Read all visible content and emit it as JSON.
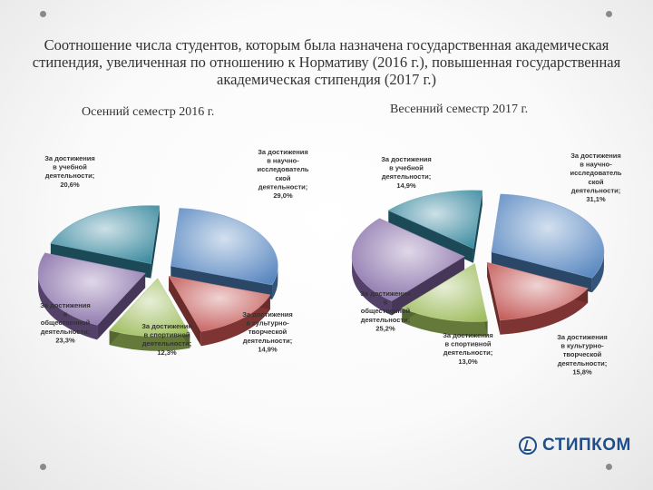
{
  "title": "Соотношение числа студентов, которым была назначена государственная академическая стипендия, увеличенная по отношению к Нормативу (2016 г.), повышенная государственная академическая стипендия (2017 г.)",
  "brand": {
    "name": "СТИПКОМ",
    "color": "#1f4f8a"
  },
  "chart_data": [
    {
      "type": "pie",
      "subtitle": "Осенний семестр 2016 г.",
      "slices": [
        {
          "label": "За достижения в научно-исследовательской деятельности",
          "value": 29.0,
          "value_label": "29,0%",
          "color": "#4f81bd"
        },
        {
          "label": "За достижения в культурно-творческой деятельности",
          "value": 14.9,
          "value_label": "14,9%",
          "color": "#c0504d"
        },
        {
          "label": "За достижения в спортивной деятельности",
          "value": 12.3,
          "value_label": "12,3%",
          "color": "#9bbb59"
        },
        {
          "label": "За достижения в общественной деятельности",
          "value": 23.3,
          "value_label": "23,3%",
          "color": "#8064a2"
        },
        {
          "label": "За достижения в учебной деятельности",
          "value": 20.6,
          "value_label": "20,6%",
          "color": "#31849b"
        }
      ]
    },
    {
      "type": "pie",
      "subtitle": "Весенний семестр 2017 г.",
      "slices": [
        {
          "label": "За достижения в научно-исследовательской деятельности",
          "value": 31.1,
          "value_label": "31,1%",
          "color": "#4f81bd"
        },
        {
          "label": "За достижения в культурно-творческой деятельности",
          "value": 15.8,
          "value_label": "15,8%",
          "color": "#c0504d"
        },
        {
          "label": "За достижения в спортивной деятельности",
          "value": 13.0,
          "value_label": "13,0%",
          "color": "#9bbb59"
        },
        {
          "label": "За достижения в общественной деятельности",
          "value": 25.2,
          "value_label": "25,2%",
          "color": "#8064a2"
        },
        {
          "label": "За достижения в учебной деятельности",
          "value": 14.9,
          "value_label": "14,9%",
          "color": "#31849b"
        }
      ]
    }
  ]
}
